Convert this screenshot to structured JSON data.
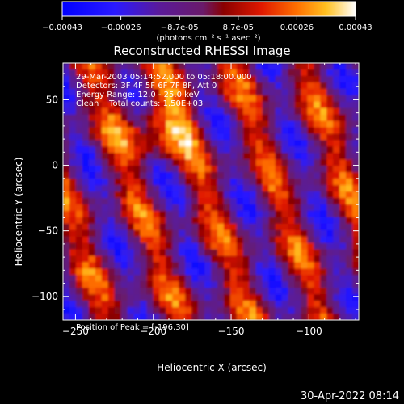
{
  "colorbar": {
    "ticks": [
      "-0.00043",
      "-0.00026",
      "-8.7e-05",
      "8.7e-05",
      "0.00026",
      "0.00043"
    ],
    "unit_label": "(photons cm⁻² s⁻¹ asec⁻²)",
    "range": [
      -0.00043,
      0.00043
    ]
  },
  "chart_data": {
    "type": "heatmap",
    "title": "Reconstructed RHESSI Image",
    "xlabel": "Heliocentric X (arcsec)",
    "ylabel": "Heliocentric Y (arcsec)",
    "xlim": [
      -258,
      -68
    ],
    "ylim": [
      -118,
      78
    ],
    "xticks": [
      -250,
      -200,
      -150,
      -100
    ],
    "yticks": [
      -100,
      -50,
      0,
      50
    ],
    "xtick_labels": [
      "−250",
      "−200",
      "−150",
      "−100"
    ],
    "ytick_labels": [
      "−100",
      "−50",
      "0",
      "50"
    ],
    "annotations": [
      "29-Mar-2003 05:14:52.000 to 05:18:00.000",
      "Detectors: 3F 4F 5F 6F 7F 8F, Att 0",
      "Energy Range: 12.0 - 25.0 keV",
      "Clean    Total counts: 1.50E+03"
    ],
    "peak_label": "Position of Peak = [-196,30]",
    "peak": [
      -196,
      30
    ]
  },
  "footer": {
    "timestamp": "30-Apr-2022 08:14"
  }
}
